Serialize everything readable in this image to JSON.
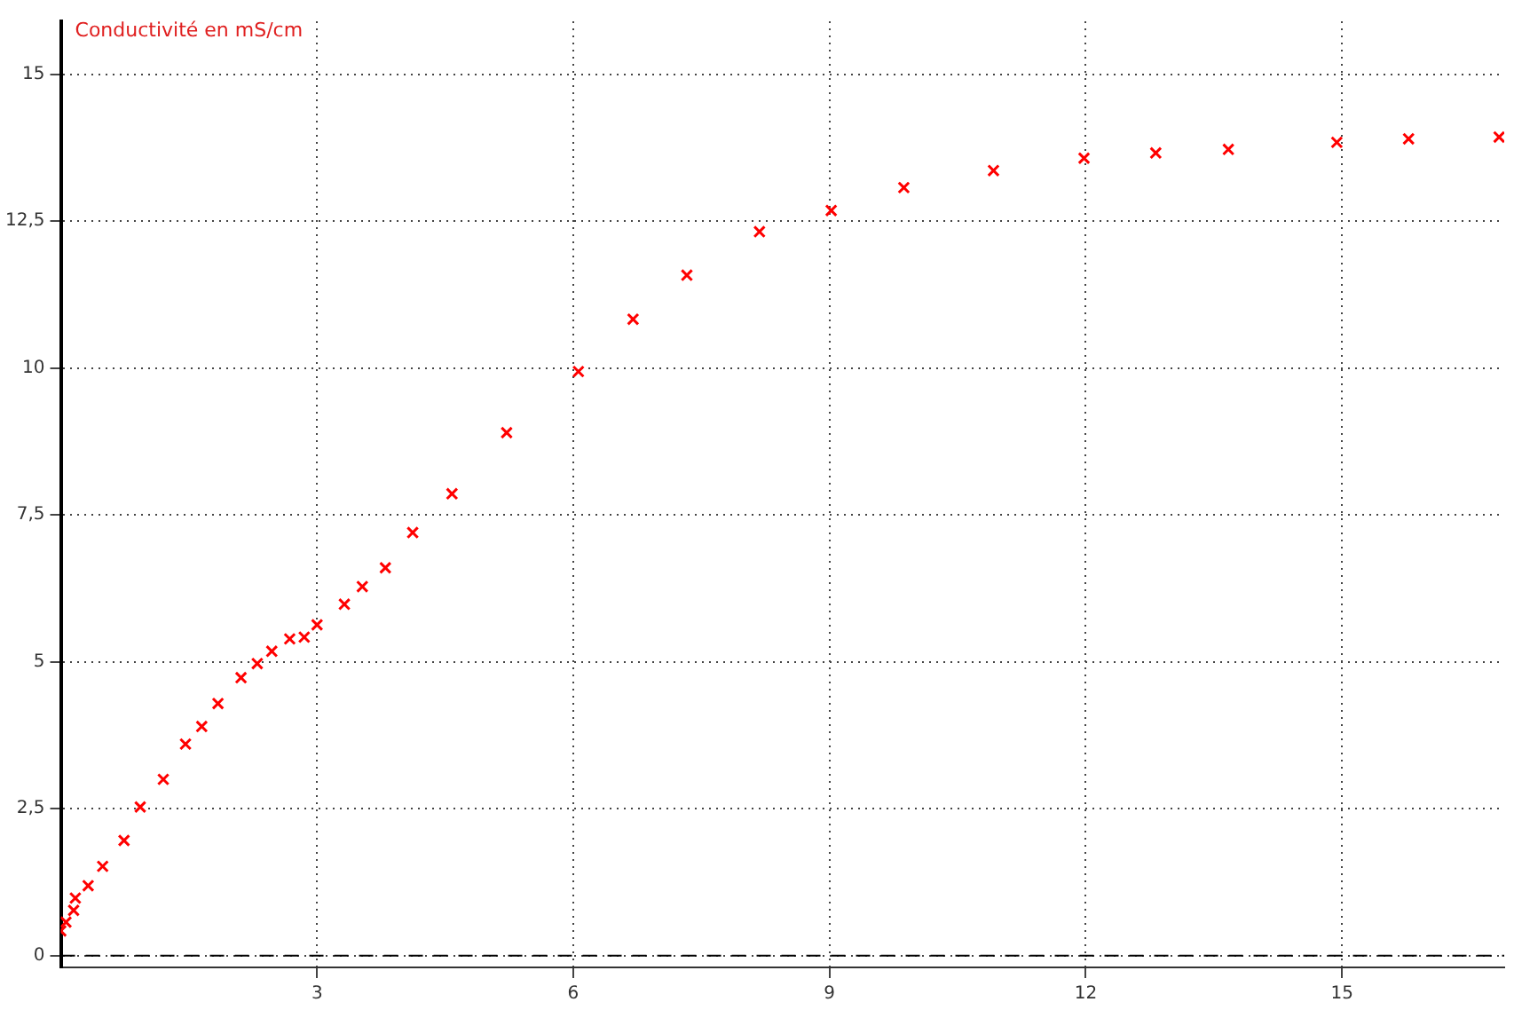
{
  "chart_data": {
    "type": "scatter",
    "ylabel": "Conductivité en mS/cm",
    "marker": "cross",
    "grid": true,
    "x": [
      0,
      0.06,
      0.15,
      0.17,
      0.32,
      0.49,
      0.74,
      0.93,
      1.2,
      1.46,
      1.65,
      1.84,
      2.11,
      2.3,
      2.47,
      2.68,
      2.85,
      3.0,
      3.32,
      3.53,
      3.8,
      4.12,
      4.58,
      5.22,
      6.06,
      6.7,
      7.33,
      8.18,
      9.02,
      9.87,
      10.92,
      11.98,
      12.82,
      13.67,
      14.94,
      15.78,
      16.84
    ],
    "series": [
      {
        "color": "#ff0000",
        "values": [
          0.42,
          0.57,
          0.77,
          0.98,
          1.19,
          1.52,
          1.96,
          2.53,
          3.0,
          3.6,
          3.9,
          4.29,
          4.73,
          4.97,
          5.18,
          5.39,
          5.42,
          5.63,
          5.98,
          6.28,
          6.6,
          7.2,
          7.86,
          8.9,
          9.94,
          10.83,
          11.58,
          12.32,
          12.68,
          13.07,
          13.36,
          13.57,
          13.66,
          13.72,
          13.84,
          13.9,
          13.93
        ]
      }
    ],
    "xlim": [
      0,
      16.9
    ],
    "xticks": [
      3,
      6,
      9,
      12,
      15
    ],
    "ylim": [
      -0.2,
      15.9
    ],
    "yticks": [
      0,
      {
        "value": 2.5,
        "label": "2,5"
      },
      5,
      {
        "value": 7.5,
        "label": "7,5"
      },
      10,
      {
        "value": 12.5,
        "label": "12,5"
      },
      15
    ],
    "ref_lines": [
      {
        "axis": "y",
        "value": 0,
        "color": "#000000",
        "line_style": "dashed"
      }
    ]
  }
}
